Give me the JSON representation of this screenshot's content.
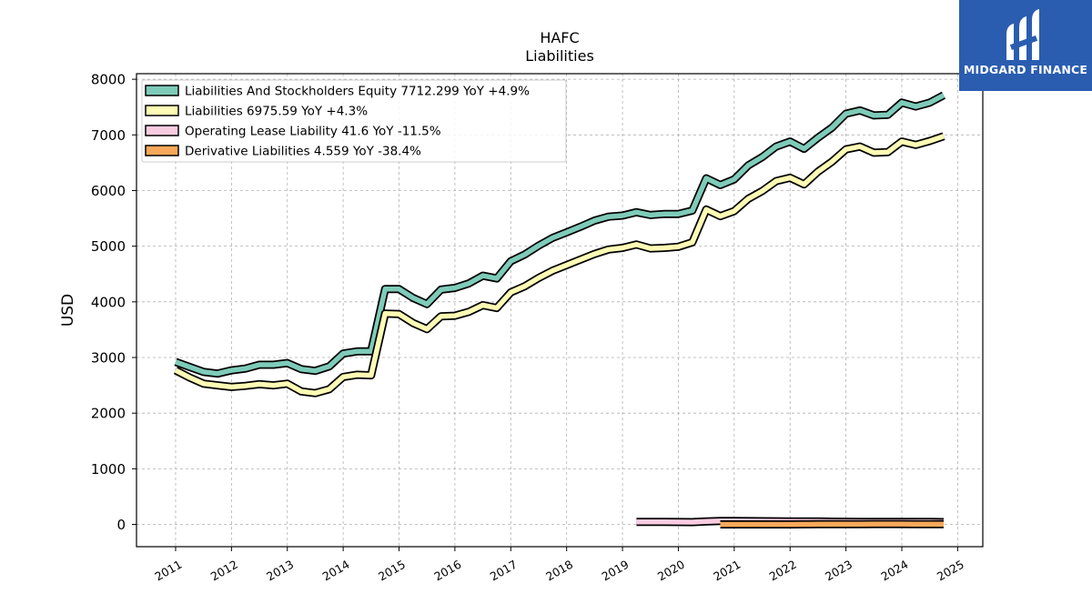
{
  "chart_data": {
    "type": "line",
    "title": "HAFC",
    "subtitle": "Liabilities",
    "ylabel": "USD",
    "xlabel": "",
    "ylim": [
      -400,
      8100
    ],
    "xlim": [
      2010.3,
      2025.45
    ],
    "yticks": [
      0,
      1000,
      2000,
      3000,
      4000,
      5000,
      6000,
      7000,
      8000
    ],
    "xticks": [
      "2011",
      "2012",
      "2013",
      "2014",
      "2015",
      "2016",
      "2017",
      "2018",
      "2019",
      "2020",
      "2021",
      "2022",
      "2023",
      "2024",
      "2025"
    ],
    "grid": true,
    "legend_position": "top-left",
    "series": [
      {
        "name": "Liabilities And Stockholders Equity",
        "legend_label": "Liabilities And Stockholders Equity  7712.299 YoY +4.9%",
        "color": "#7ecbb9",
        "points": [
          [
            "2011-01-01",
            2920
          ],
          [
            "2011-04-01",
            2830
          ],
          [
            "2011-07-01",
            2740
          ],
          [
            "2011-10-01",
            2710
          ],
          [
            "2012-01-01",
            2770
          ],
          [
            "2012-04-01",
            2800
          ],
          [
            "2012-07-01",
            2870
          ],
          [
            "2012-10-01",
            2870
          ],
          [
            "2013-01-01",
            2900
          ],
          [
            "2013-04-01",
            2790
          ],
          [
            "2013-07-01",
            2760
          ],
          [
            "2013-10-01",
            2840
          ],
          [
            "2014-01-01",
            3070
          ],
          [
            "2014-04-01",
            3110
          ],
          [
            "2014-07-01",
            3110
          ],
          [
            "2014-10-01",
            4230
          ],
          [
            "2015-01-01",
            4230
          ],
          [
            "2015-04-01",
            4070
          ],
          [
            "2015-07-01",
            3960
          ],
          [
            "2015-10-01",
            4220
          ],
          [
            "2016-01-01",
            4250
          ],
          [
            "2016-04-01",
            4330
          ],
          [
            "2016-07-01",
            4470
          ],
          [
            "2016-10-01",
            4420
          ],
          [
            "2017-01-01",
            4730
          ],
          [
            "2017-04-01",
            4850
          ],
          [
            "2017-07-01",
            5010
          ],
          [
            "2017-10-01",
            5150
          ],
          [
            "2018-01-01",
            5250
          ],
          [
            "2018-04-01",
            5350
          ],
          [
            "2018-07-01",
            5460
          ],
          [
            "2018-10-01",
            5530
          ],
          [
            "2019-01-01",
            5550
          ],
          [
            "2019-04-01",
            5610
          ],
          [
            "2019-07-01",
            5560
          ],
          [
            "2019-10-01",
            5580
          ],
          [
            "2020-01-01",
            5580
          ],
          [
            "2020-04-01",
            5640
          ],
          [
            "2020-07-01",
            6220
          ],
          [
            "2020-10-01",
            6100
          ],
          [
            "2021-01-01",
            6200
          ],
          [
            "2021-04-01",
            6450
          ],
          [
            "2021-07-01",
            6600
          ],
          [
            "2021-10-01",
            6790
          ],
          [
            "2022-01-01",
            6880
          ],
          [
            "2022-04-01",
            6750
          ],
          [
            "2022-07-01",
            6950
          ],
          [
            "2022-10-01",
            7130
          ],
          [
            "2023-01-01",
            7380
          ],
          [
            "2023-04-01",
            7440
          ],
          [
            "2023-07-01",
            7350
          ],
          [
            "2023-10-01",
            7360
          ],
          [
            "2024-01-01",
            7580
          ],
          [
            "2024-04-01",
            7510
          ],
          [
            "2024-07-01",
            7580
          ],
          [
            "2024-10-01",
            7712.299
          ]
        ]
      },
      {
        "name": "Liabilities",
        "legend_label": "Liabilities  6975.59 YoY +4.3%",
        "color": "#fdfbb4",
        "points": [
          [
            "2011-01-01",
            2770
          ],
          [
            "2011-04-01",
            2640
          ],
          [
            "2011-07-01",
            2530
          ],
          [
            "2011-10-01",
            2500
          ],
          [
            "2012-01-01",
            2470
          ],
          [
            "2012-04-01",
            2490
          ],
          [
            "2012-07-01",
            2520
          ],
          [
            "2012-10-01",
            2500
          ],
          [
            "2013-01-01",
            2530
          ],
          [
            "2013-04-01",
            2390
          ],
          [
            "2013-07-01",
            2360
          ],
          [
            "2013-10-01",
            2430
          ],
          [
            "2014-01-01",
            2650
          ],
          [
            "2014-04-01",
            2690
          ],
          [
            "2014-07-01",
            2680
          ],
          [
            "2014-10-01",
            3790
          ],
          [
            "2015-01-01",
            3780
          ],
          [
            "2015-04-01",
            3620
          ],
          [
            "2015-07-01",
            3510
          ],
          [
            "2015-10-01",
            3740
          ],
          [
            "2016-01-01",
            3750
          ],
          [
            "2016-04-01",
            3820
          ],
          [
            "2016-07-01",
            3940
          ],
          [
            "2016-10-01",
            3890
          ],
          [
            "2017-01-01",
            4170
          ],
          [
            "2017-04-01",
            4280
          ],
          [
            "2017-07-01",
            4430
          ],
          [
            "2017-10-01",
            4560
          ],
          [
            "2018-01-01",
            4660
          ],
          [
            "2018-04-01",
            4760
          ],
          [
            "2018-07-01",
            4860
          ],
          [
            "2018-10-01",
            4940
          ],
          [
            "2019-01-01",
            4970
          ],
          [
            "2019-04-01",
            5030
          ],
          [
            "2019-07-01",
            4960
          ],
          [
            "2019-10-01",
            4970
          ],
          [
            "2020-01-01",
            4990
          ],
          [
            "2020-04-01",
            5070
          ],
          [
            "2020-07-01",
            5660
          ],
          [
            "2020-10-01",
            5540
          ],
          [
            "2021-01-01",
            5630
          ],
          [
            "2021-04-01",
            5850
          ],
          [
            "2021-07-01",
            5990
          ],
          [
            "2021-10-01",
            6170
          ],
          [
            "2022-01-01",
            6230
          ],
          [
            "2022-04-01",
            6110
          ],
          [
            "2022-07-01",
            6340
          ],
          [
            "2022-10-01",
            6520
          ],
          [
            "2023-01-01",
            6740
          ],
          [
            "2023-04-01",
            6790
          ],
          [
            "2023-07-01",
            6680
          ],
          [
            "2023-10-01",
            6690
          ],
          [
            "2024-01-01",
            6880
          ],
          [
            "2024-04-01",
            6820
          ],
          [
            "2024-07-01",
            6890
          ],
          [
            "2024-10-01",
            6975.59
          ]
        ]
      },
      {
        "name": "Operating Lease Liability",
        "legend_label": "Operating Lease Liability  41.6 YoY -11.5%",
        "color": "#f9cbe1",
        "points": [
          [
            "2019-04-01",
            45
          ],
          [
            "2019-07-01",
            45
          ],
          [
            "2019-10-01",
            44
          ],
          [
            "2020-01-01",
            43
          ],
          [
            "2020-04-01",
            42
          ],
          [
            "2020-07-01",
            55
          ],
          [
            "2020-10-01",
            62
          ],
          [
            "2021-01-01",
            62
          ],
          [
            "2021-04-01",
            60
          ],
          [
            "2021-07-01",
            58
          ],
          [
            "2021-10-01",
            56
          ],
          [
            "2022-01-01",
            55
          ],
          [
            "2022-04-01",
            54
          ],
          [
            "2022-07-01",
            52
          ],
          [
            "2022-10-01",
            50
          ],
          [
            "2023-01-01",
            48
          ],
          [
            "2023-04-01",
            47
          ],
          [
            "2023-07-01",
            46
          ],
          [
            "2023-10-01",
            47
          ],
          [
            "2024-01-01",
            46
          ],
          [
            "2024-04-01",
            45
          ],
          [
            "2024-07-01",
            44
          ],
          [
            "2024-10-01",
            41.6
          ]
        ]
      },
      {
        "name": "Derivative Liabilities",
        "legend_label": "Derivative Liabilities  4.559 YoY -38.4%",
        "color": "#f7a85a",
        "points": [
          [
            "2020-10-01",
            1
          ],
          [
            "2021-01-01",
            1
          ],
          [
            "2021-04-01",
            1
          ],
          [
            "2021-07-01",
            1
          ],
          [
            "2021-10-01",
            1
          ],
          [
            "2022-01-01",
            1
          ],
          [
            "2022-04-01",
            2
          ],
          [
            "2022-07-01",
            3
          ],
          [
            "2022-10-01",
            4
          ],
          [
            "2023-01-01",
            5
          ],
          [
            "2023-04-01",
            6
          ],
          [
            "2023-07-01",
            7
          ],
          [
            "2023-10-01",
            7.4
          ],
          [
            "2024-01-01",
            7
          ],
          [
            "2024-04-01",
            6
          ],
          [
            "2024-07-01",
            5
          ],
          [
            "2024-10-01",
            4.559
          ]
        ]
      }
    ]
  },
  "branding": {
    "logo_text": "MIDGARD FINANCE",
    "logo_background": "#2a5db0",
    "logo_icon": "midgard-logo-icon"
  }
}
